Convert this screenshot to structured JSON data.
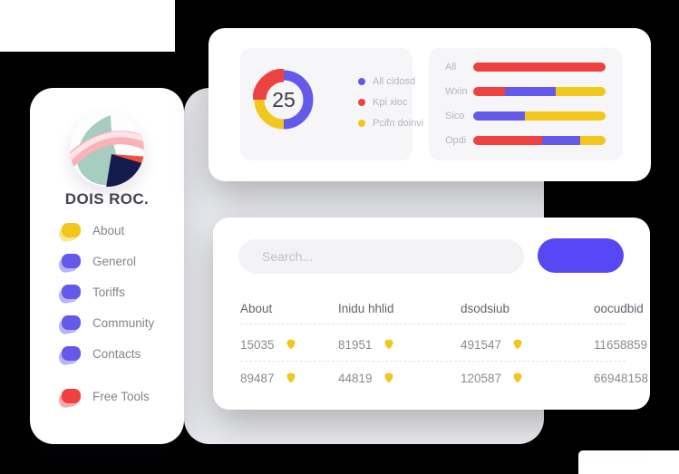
{
  "sidebar": {
    "brand": "DOIS ROC.",
    "items": [
      {
        "label": "About",
        "color": "#f2c71b"
      },
      {
        "label": "Generol",
        "color": "#6459e8"
      },
      {
        "label": "Toriffs",
        "color": "#6459e8"
      },
      {
        "label": "Community",
        "color": "#6459e8"
      },
      {
        "label": "Contacts",
        "color": "#6459e8"
      },
      {
        "label": "Free Tools",
        "color": "#ee4141"
      }
    ]
  },
  "stats_card": {
    "donut_value": "25",
    "legend": [
      {
        "label": "All cidosd",
        "color": "#6459e8"
      },
      {
        "label": "Kpi xioc",
        "color": "#ee4141"
      },
      {
        "label": "Pcifn doinvi",
        "color": "#f2c71b"
      }
    ]
  },
  "table_card": {
    "search_placeholder": "Search...",
    "button_label": "",
    "columns": [
      "About",
      "Inidu hhlid",
      "dsodsiub",
      "oocudbid"
    ],
    "rows": [
      [
        "15035",
        "81951",
        "491547",
        "11658859"
      ],
      [
        "89487",
        "44819",
        "120587",
        "66948158"
      ]
    ]
  },
  "colors": {
    "accent_button": "#5847f5",
    "red": "#ee4141",
    "indigo": "#6459e8",
    "yellow": "#f2c71b",
    "page_background": "#ebecf0",
    "panel_background": "#f6f6f8"
  },
  "chart_data": [
    {
      "type": "pie",
      "subtype": "donut",
      "center_label": "25",
      "legend_position": "right",
      "segments": [
        {
          "label": "All cidosd",
          "value": 50,
          "color": "#6459e8"
        },
        {
          "label": "Kpi xioc",
          "value": 25,
          "color": "#ee4141",
          "emphasized": true
        },
        {
          "label": "Pcifn doinvi",
          "value": 25,
          "color": "#f2c71b"
        }
      ],
      "arcs": [
        {
          "from": 0,
          "to": 180,
          "color": "#6459e8",
          "width": 11
        },
        {
          "from": 180,
          "to": 270,
          "color": "#f2c71b",
          "width": 11
        },
        {
          "from": 270,
          "to": 360,
          "color": "#ee4141",
          "width": 15
        }
      ]
    },
    {
      "type": "bar",
      "orientation": "horizontal",
      "stacked": true,
      "unit": "percent",
      "xlim": [
        0,
        100
      ],
      "grid": false,
      "categories": [
        "All",
        "Wxin",
        "Sico",
        "Opdi"
      ],
      "series": [
        {
          "name": "red",
          "color": "#ee4141",
          "values": [
            100,
            24,
            0,
            52
          ]
        },
        {
          "name": "indigo",
          "color": "#6459e8",
          "values": [
            0,
            38,
            39,
            29
          ]
        },
        {
          "name": "yellow",
          "color": "#f2c71b",
          "values": [
            0,
            38,
            61,
            19
          ]
        }
      ]
    }
  ]
}
